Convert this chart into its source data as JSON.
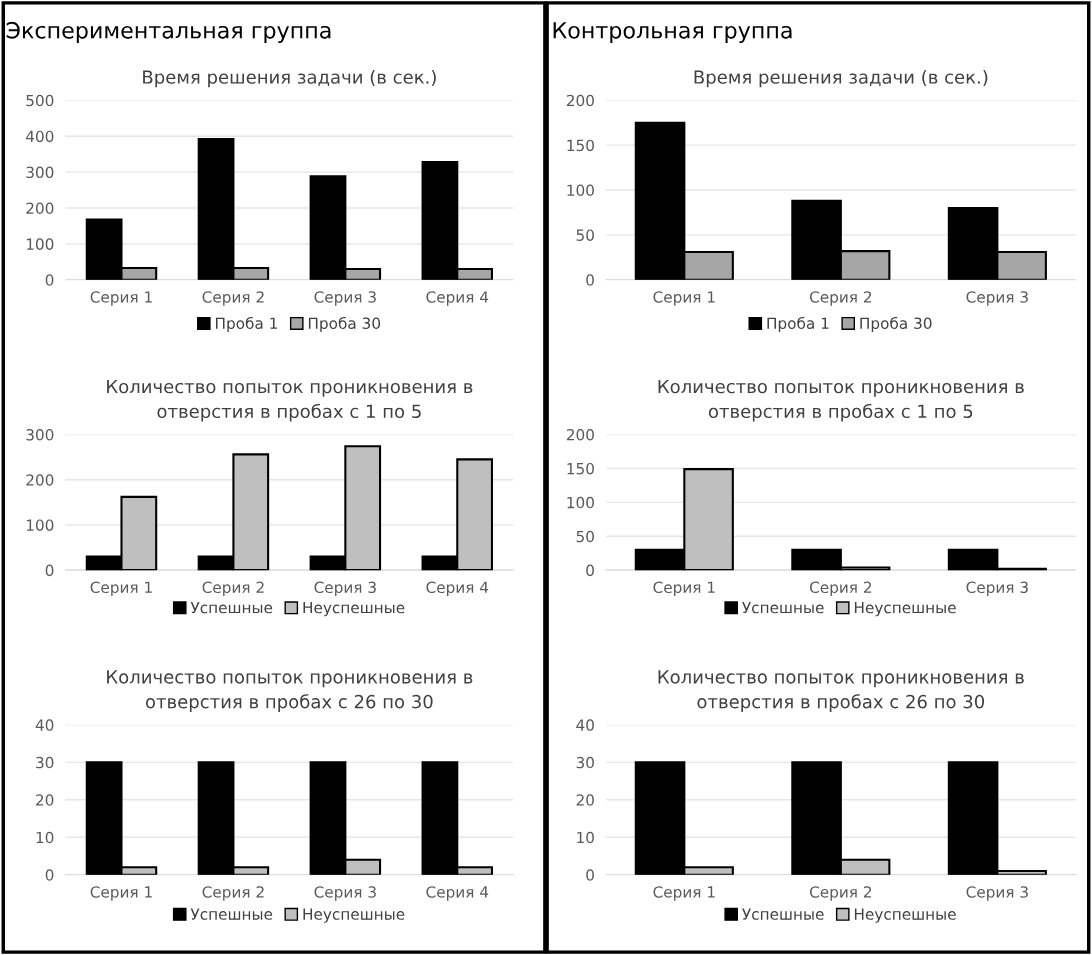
{
  "chart_data": [
    {
      "type": "bar",
      "title": "Время решения задачи (в сек.)",
      "annotations": [
        "Экспериментальная группа"
      ],
      "categories": [
        "Серия 1",
        "Серия 2",
        "Серия 3",
        "Серия 4"
      ],
      "series": [
        {
          "name": "Проба 1",
          "color": "#000000",
          "values": [
            168,
            392,
            288,
            328
          ]
        },
        {
          "name": "Проба 30",
          "color": "#a6a6a6",
          "values": [
            33,
            33,
            30,
            30
          ]
        }
      ],
      "ylim": [
        0,
        500
      ],
      "yticks": [
        0,
        100,
        200,
        300,
        400,
        500
      ],
      "grid": "y",
      "legend": "bottom"
    },
    {
      "type": "bar",
      "title": "Время решения задачи (в сек.)",
      "annotations": [
        "Контрольная группа"
      ],
      "categories": [
        "Серия 1",
        "Серия 2",
        "Серия 3"
      ],
      "series": [
        {
          "name": "Проба 1",
          "color": "#000000",
          "values": [
            175,
            88,
            80
          ]
        },
        {
          "name": "Проба 30",
          "color": "#a6a6a6",
          "values": [
            31,
            32,
            31
          ]
        }
      ],
      "ylim": [
        0,
        200
      ],
      "yticks": [
        0,
        50,
        100,
        150,
        200
      ],
      "grid": "y",
      "legend": "bottom"
    },
    {
      "type": "bar",
      "title": "Количество попыток проникновения в\nотверстия в пробах с 1 по 5",
      "categories": [
        "Серия 1",
        "Серия 2",
        "Серия 3",
        "Серия 4"
      ],
      "series": [
        {
          "name": "Успешные",
          "color": "#000000",
          "values": [
            30,
            30,
            30,
            30
          ]
        },
        {
          "name": "Неуспешные",
          "color": "#bfbfbf",
          "values": [
            162,
            256,
            274,
            245
          ]
        }
      ],
      "ylim": [
        0,
        300
      ],
      "yticks": [
        0,
        100,
        200,
        300
      ],
      "grid": "y",
      "legend": "bottom"
    },
    {
      "type": "bar",
      "title": "Количество попыток проникновения в\nотверстия в пробах с 1 по 5",
      "categories": [
        "Серия 1",
        "Серия 2",
        "Серия 3"
      ],
      "series": [
        {
          "name": "Успешные",
          "color": "#000000",
          "values": [
            30,
            30,
            30
          ]
        },
        {
          "name": "Неуспешные",
          "color": "#bfbfbf",
          "values": [
            149,
            4,
            2
          ]
        }
      ],
      "ylim": [
        0,
        200
      ],
      "yticks": [
        0,
        50,
        100,
        150,
        200
      ],
      "grid": "y",
      "legend": "bottom"
    },
    {
      "type": "bar",
      "title": "Количество попыток проникновения в\nотверстия в пробах с 26 по 30",
      "categories": [
        "Серия 1",
        "Серия 2",
        "Серия 3",
        "Серия 4"
      ],
      "series": [
        {
          "name": "Успешные",
          "color": "#000000",
          "values": [
            30,
            30,
            30,
            30
          ]
        },
        {
          "name": "Неуспешные",
          "color": "#bfbfbf",
          "values": [
            2,
            2,
            4,
            2
          ]
        }
      ],
      "ylim": [
        0,
        40
      ],
      "yticks": [
        0,
        10,
        20,
        30,
        40
      ],
      "grid": "y",
      "legend": "bottom"
    },
    {
      "type": "bar",
      "title": "Количество попыток проникновения в\nотверстия в пробах с 26 по 30",
      "categories": [
        "Серия 1",
        "Серия 2",
        "Серия 3"
      ],
      "series": [
        {
          "name": "Успешные",
          "color": "#000000",
          "values": [
            30,
            30,
            30
          ]
        },
        {
          "name": "Неуспешные",
          "color": "#bfbfbf",
          "values": [
            2,
            4,
            1
          ]
        }
      ],
      "ylim": [
        0,
        40
      ],
      "yticks": [
        0,
        10,
        20,
        30,
        40
      ],
      "grid": "y",
      "legend": "bottom"
    }
  ]
}
